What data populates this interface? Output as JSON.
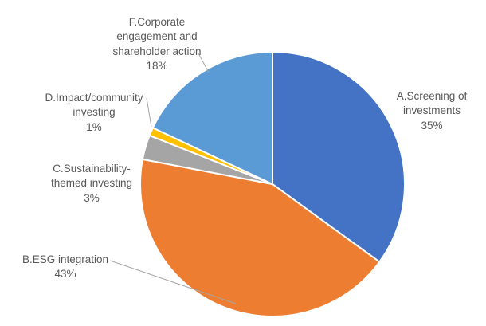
{
  "chart_data": {
    "type": "pie",
    "title": "",
    "legend": "none",
    "start_angle_deg": 0,
    "direction": "clockwise",
    "background": "#FFFFFF",
    "slice_border_color": "#FFFFFF",
    "label_color": "#595959",
    "leader_line_color": "#A6A6A6",
    "slices": [
      {
        "label": "A.Screening of investments",
        "value": 35,
        "pct": "35%",
        "color": "#4472C4",
        "label_lines": [
          "A.Screening of",
          "investments",
          "35%"
        ]
      },
      {
        "label": "B.ESG integration",
        "value": 43,
        "pct": "43%",
        "color": "#ED7D31",
        "label_lines": [
          "B.ESG integration",
          "43%"
        ]
      },
      {
        "label": "C.Sustainability-themed investing",
        "value": 3,
        "pct": "3%",
        "color": "#A5A5A5",
        "label_lines": [
          "C.Sustainability-",
          "themed investing",
          "3%"
        ]
      },
      {
        "label": "D.Impact/community investing",
        "value": 1,
        "pct": "1%",
        "color": "#FFC000",
        "label_lines": [
          "D.Impact/community",
          "investing",
          "1%"
        ]
      },
      {
        "label": "F.Corporate engagement and shareholder action",
        "value": 18,
        "pct": "18%",
        "color": "#5B9BD5",
        "label_lines": [
          "F.Corporate",
          "engagement and",
          "shareholder action",
          "18%"
        ]
      }
    ]
  }
}
